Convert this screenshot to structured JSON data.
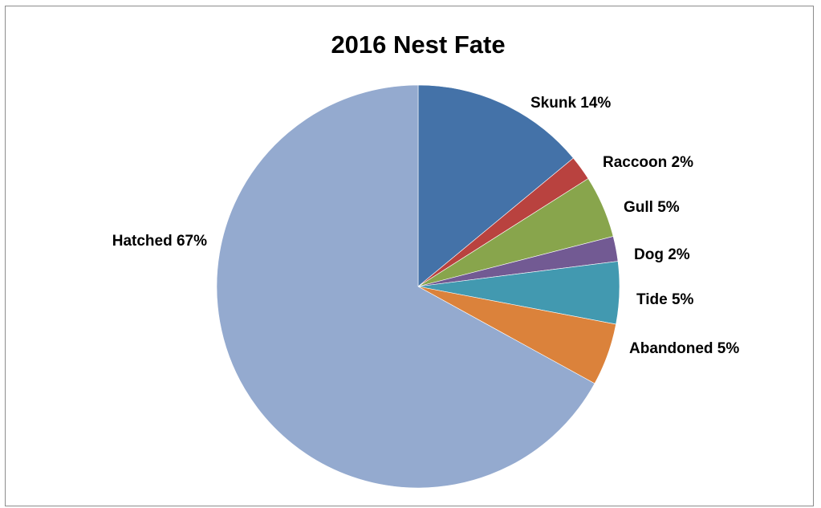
{
  "chart_data": {
    "type": "pie",
    "title": "2016 Nest Fate",
    "slices": [
      {
        "label": "Skunk",
        "value": 14,
        "display": "14%",
        "color": "#4472a8"
      },
      {
        "label": "Raccoon",
        "value": 2,
        "display": "2%",
        "color": "#b9423f"
      },
      {
        "label": "Gull",
        "value": 5,
        "display": "5%",
        "color": "#88a54c"
      },
      {
        "label": "Dog",
        "value": 2,
        "display": "2%",
        "color": "#725a93"
      },
      {
        "label": "Tide",
        "value": 5,
        "display": "5%",
        "color": "#4299b0"
      },
      {
        "label": "Abandoned",
        "value": 5,
        "display": "5%",
        "color": "#db823b"
      },
      {
        "label": "Hatched",
        "value": 67,
        "display": "67%",
        "color": "#94aacf"
      }
    ],
    "start_angle_deg": 0,
    "direction": "clockwise",
    "legend": "none",
    "data_labels": "outside"
  }
}
